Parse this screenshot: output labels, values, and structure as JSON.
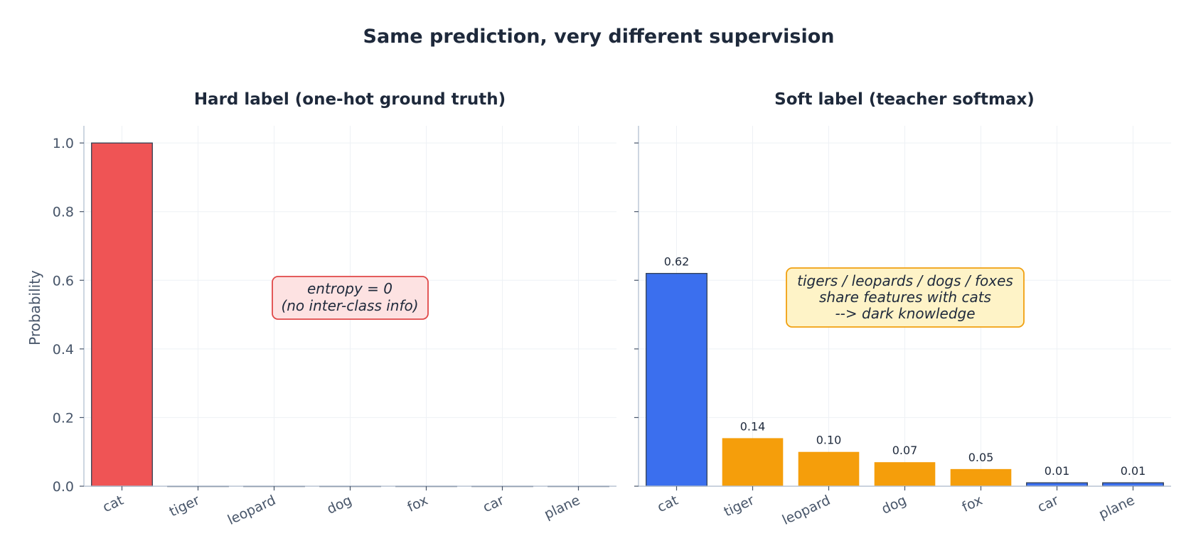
{
  "title": "Same prediction, very different supervision",
  "colors": {
    "hard_bar": "#ef5455",
    "soft_top": "#3b6fee",
    "soft_related": "#f59e0b",
    "soft_unrelated": "#3b6fee",
    "hard_anno_fill": "#fde2e2",
    "hard_anno_border": "#e04848",
    "soft_anno_fill": "#fef3c7",
    "soft_anno_border": "#f0a010",
    "axis": "#b8c4d4",
    "grid": "#eef1f5",
    "bar_edge": "#334155"
  },
  "chart_data": [
    {
      "type": "bar",
      "title": "Hard label  (one-hot ground truth)",
      "categories": [
        "cat",
        "tiger",
        "leopard",
        "dog",
        "fox",
        "car",
        "plane"
      ],
      "values": [
        1.0,
        0,
        0,
        0,
        0,
        0,
        0
      ],
      "xlabel": "",
      "ylabel": "Probability",
      "ylim": [
        0,
        1.05
      ],
      "yticks": [
        "0.0",
        "0.2",
        "0.4",
        "0.6",
        "0.8",
        "1.0"
      ],
      "grid": true,
      "annotation": [
        "entropy = 0",
        "(no inter-class info)"
      ],
      "value_labels": []
    },
    {
      "type": "bar",
      "title": "Soft label  (teacher softmax)",
      "categories": [
        "cat",
        "tiger",
        "leopard",
        "dog",
        "fox",
        "car",
        "plane"
      ],
      "values": [
        0.62,
        0.14,
        0.1,
        0.07,
        0.05,
        0.01,
        0.01
      ],
      "xlabel": "",
      "ylabel": "",
      "ylim": [
        0,
        1.05
      ],
      "grid": true,
      "annotation": [
        "tigers / leopards / dogs / foxes",
        "share features with cats",
        "--> dark knowledge"
      ],
      "value_labels": [
        "0.62",
        "0.14",
        "0.10",
        "0.07",
        "0.05",
        "0.01",
        "0.01"
      ]
    }
  ]
}
